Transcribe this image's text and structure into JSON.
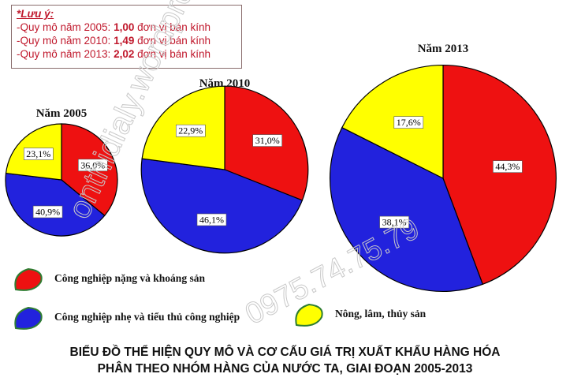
{
  "note": {
    "title": "*Lưu ý:",
    "lines": [
      {
        "prefix": "-Quy mô năm 2005: ",
        "value": "1,00",
        "suffix": " đơn vị bán kính"
      },
      {
        "prefix": "-Quy mô năm 2010: ",
        "value": "1,49",
        "suffix": " đơn vị bán kính"
      },
      {
        "prefix": "-Quy mô năm 2013: ",
        "value": "2,02",
        "suffix": " đơn vị bán kính"
      }
    ]
  },
  "watermarks": [
    "onthidialy.wordpress.com",
    "0975.74.75.79"
  ],
  "chart_data": {
    "type": "pie",
    "colors": {
      "heavy": "#ee1111",
      "light": "#2222dd",
      "agri": "#ffff00"
    },
    "legend": [
      {
        "key": "heavy",
        "label": "Công nghiệp nặng và khoáng sản"
      },
      {
        "key": "light",
        "label": "Công nghiệp nhẹ và tiểu thủ công nghiệp"
      },
      {
        "key": "agri",
        "label": "Nông, lâm, thủy sản"
      }
    ],
    "pies": [
      {
        "title": "Năm 2005",
        "scale": 1.0,
        "values": {
          "heavy": 36.0,
          "light": 40.9,
          "agri": 23.1
        },
        "labels": {
          "heavy": "36,0%",
          "light": "40,9%",
          "agri": "23,1%"
        }
      },
      {
        "title": "Năm 2010",
        "scale": 1.49,
        "values": {
          "heavy": 31.0,
          "light": 46.1,
          "agri": 22.9
        },
        "labels": {
          "heavy": "31,0%",
          "light": "46,1%",
          "agri": "22,9%"
        }
      },
      {
        "title": "Năm 2013",
        "scale": 2.02,
        "values": {
          "heavy": 44.3,
          "light": 38.1,
          "agri": 17.6
        },
        "labels": {
          "heavy": "44,3%",
          "light": "38,1%",
          "agri": "17,6%"
        }
      }
    ],
    "caption": [
      "BIỂU ĐỒ THỂ HIỆN QUY MÔ VÀ CƠ CẤU GIÁ TRỊ XUẤT KHẨU HÀNG HÓA",
      "PHÂN THEO NHÓM HÀNG CỦA NƯỚC TA, GIAI ĐOẠN 2005-2013"
    ]
  }
}
